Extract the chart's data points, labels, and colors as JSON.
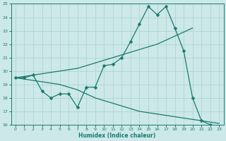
{
  "xlabel": "Humidex (Indice chaleur)",
  "bg_color": "#cce8e8",
  "grid_color": "#aad0d0",
  "line_color": "#1a7a6e",
  "xlim": [
    -0.5,
    23.5
  ],
  "ylim": [
    16,
    25
  ],
  "xticks": [
    0,
    1,
    2,
    3,
    4,
    5,
    6,
    7,
    8,
    9,
    10,
    11,
    12,
    13,
    14,
    15,
    16,
    17,
    18,
    19,
    20,
    21,
    22,
    23
  ],
  "yticks": [
    16,
    17,
    18,
    19,
    20,
    21,
    22,
    23,
    24,
    25
  ],
  "series1_x": [
    0,
    1,
    2,
    3,
    4,
    5,
    6,
    7,
    8,
    9,
    10,
    11,
    12,
    13,
    14,
    15,
    16,
    17,
    18,
    19,
    20,
    21,
    22,
    23
  ],
  "series1_y": [
    19.5,
    19.5,
    19.7,
    18.5,
    18.0,
    18.3,
    18.3,
    17.3,
    18.8,
    18.8,
    20.4,
    20.5,
    21.0,
    22.2,
    23.5,
    24.8,
    24.2,
    24.8,
    23.2,
    21.5,
    18.0,
    16.3,
    16.0,
    null
  ],
  "series2_x": [
    0,
    1,
    2,
    3,
    4,
    5,
    6,
    7,
    8,
    9,
    10,
    11,
    12,
    13,
    14,
    15,
    16,
    17,
    18,
    19,
    20
  ],
  "series2_y": [
    19.5,
    19.6,
    19.7,
    19.8,
    19.9,
    20.0,
    20.1,
    20.2,
    20.4,
    20.6,
    20.8,
    21.0,
    21.2,
    21.4,
    21.6,
    21.8,
    22.0,
    22.3,
    22.6,
    22.9,
    23.2
  ],
  "series3_x": [
    0,
    1,
    2,
    3,
    4,
    5,
    6,
    7,
    8,
    9,
    10,
    11,
    12,
    13,
    14,
    15,
    16,
    17,
    18,
    19,
    20,
    21,
    22,
    23
  ],
  "series3_y": [
    19.5,
    19.4,
    19.3,
    19.2,
    19.1,
    19.0,
    18.8,
    18.6,
    18.3,
    18.0,
    17.8,
    17.6,
    17.4,
    17.2,
    17.0,
    16.9,
    16.8,
    16.7,
    16.6,
    16.5,
    16.4,
    16.3,
    16.2,
    16.1
  ]
}
